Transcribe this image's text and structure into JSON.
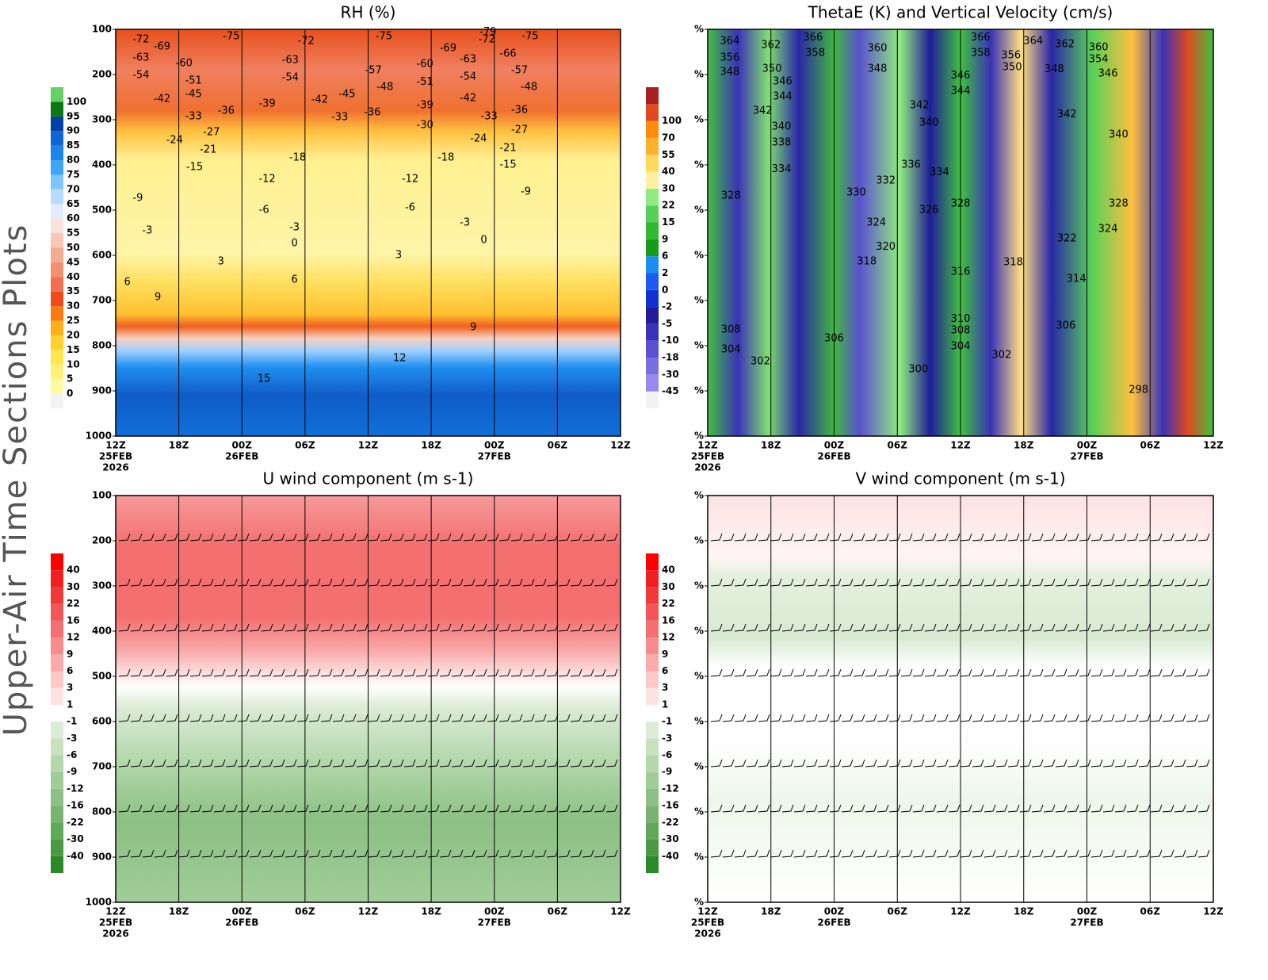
{
  "side_title": "Upper-Air Time Sections Plots",
  "chart_data": [
    {
      "type": "contour",
      "title": "RH (%)",
      "xlim": [
        0,
        48
      ],
      "ylim": [
        1000,
        100
      ],
      "xticks": [
        {
          "value": 0,
          "label": "12Z",
          "date": "25FEB",
          "year": "2026"
        },
        {
          "value": 6,
          "label": "18Z"
        },
        {
          "value": 12,
          "label": "00Z",
          "date": "26FEB"
        },
        {
          "value": 18,
          "label": "06Z"
        },
        {
          "value": 24,
          "label": "12Z"
        },
        {
          "value": 30,
          "label": "18Z"
        },
        {
          "value": 36,
          "label": "00Z",
          "date": "27FEB"
        },
        {
          "value": 42,
          "label": "06Z"
        },
        {
          "value": 48,
          "label": "12Z"
        }
      ],
      "yticks": [
        100,
        200,
        300,
        400,
        500,
        600,
        700,
        800,
        900,
        1000
      ],
      "barbs": false,
      "colorbar": {
        "levels": [
          0,
          5,
          10,
          15,
          20,
          25,
          30,
          35,
          40,
          45,
          50,
          55,
          60,
          65,
          70,
          75,
          80,
          85,
          90,
          95,
          100
        ],
        "colors": [
          "#f2f2f2",
          "#fffaa0",
          "#fff07a",
          "#ffe64a",
          "#ffd22a",
          "#ffb018",
          "#ff7a10",
          "#f04a1a",
          "#f07050",
          "#f29070",
          "#f4ac90",
          "#f7c8b4",
          "#fae2dc",
          "#e0ecff",
          "#b8dcff",
          "#80c4ff",
          "#40a4f8",
          "#1a84ee",
          "#0f64d8",
          "#0040a8",
          "#0a7a14",
          "#66d066"
        ]
      },
      "contour_labels": [
        {
          "x": 2.4,
          "p": 123,
          "value": -72
        },
        {
          "x": 2.4,
          "p": 163,
          "value": -63
        },
        {
          "x": 2.4,
          "p": 202,
          "value": -54
        },
        {
          "x": 4.4,
          "p": 139,
          "value": -69
        },
        {
          "x": 6.5,
          "p": 175,
          "value": -60
        },
        {
          "x": 7.4,
          "p": 214,
          "value": -51
        },
        {
          "x": 7.4,
          "p": 244,
          "value": -45
        },
        {
          "x": 4.4,
          "p": 254,
          "value": -42
        },
        {
          "x": 7.4,
          "p": 293,
          "value": -33
        },
        {
          "x": 10.5,
          "p": 281,
          "value": -36
        },
        {
          "x": 11,
          "p": 116,
          "value": -75
        },
        {
          "x": 14.4,
          "p": 265,
          "value": -39
        },
        {
          "x": 18.1,
          "p": 126,
          "value": -72
        },
        {
          "x": 16.6,
          "p": 168,
          "value": -63
        },
        {
          "x": 16.6,
          "p": 207,
          "value": -54
        },
        {
          "x": 19.4,
          "p": 256,
          "value": -42
        },
        {
          "x": 22,
          "p": 244,
          "value": -45
        },
        {
          "x": 21.3,
          "p": 295,
          "value": -33
        },
        {
          "x": 24.5,
          "p": 191,
          "value": -57
        },
        {
          "x": 25.6,
          "p": 228,
          "value": -48
        },
        {
          "x": 24.4,
          "p": 284,
          "value": -36
        },
        {
          "x": 25.5,
          "p": 116,
          "value": -75
        },
        {
          "x": 9.1,
          "p": 328,
          "value": -27
        },
        {
          "x": 8.8,
          "p": 367,
          "value": -21
        },
        {
          "x": 5.6,
          "p": 346,
          "value": -24
        },
        {
          "x": 7.5,
          "p": 405,
          "value": -15
        },
        {
          "x": 17.3,
          "p": 384,
          "value": -18
        },
        {
          "x": 14.4,
          "p": 432,
          "value": -12
        },
        {
          "x": 2.1,
          "p": 474,
          "value": -9
        },
        {
          "x": 14.1,
          "p": 500,
          "value": -6
        },
        {
          "x": 3,
          "p": 546,
          "value": -3
        },
        {
          "x": 17,
          "p": 539,
          "value": -3
        },
        {
          "x": 17,
          "p": 574,
          "value": 0
        },
        {
          "x": 10,
          "p": 614,
          "value": 3
        },
        {
          "x": 1.1,
          "p": 660,
          "value": 6
        },
        {
          "x": 4,
          "p": 693,
          "value": 9
        },
        {
          "x": 17,
          "p": 654,
          "value": 6
        },
        {
          "x": 14.1,
          "p": 874,
          "value": 15
        },
        {
          "x": 27,
          "p": 828,
          "value": 12
        },
        {
          "x": 34,
          "p": 760,
          "value": 9
        },
        {
          "x": 29.4,
          "p": 177,
          "value": -60
        },
        {
          "x": 29.4,
          "p": 217,
          "value": -51
        },
        {
          "x": 29.4,
          "p": 268,
          "value": -39
        },
        {
          "x": 29.4,
          "p": 312,
          "value": -30
        },
        {
          "x": 31.6,
          "p": 142,
          "value": -69
        },
        {
          "x": 33.5,
          "p": 167,
          "value": -63
        },
        {
          "x": 33.5,
          "p": 205,
          "value": -54
        },
        {
          "x": 33.5,
          "p": 253,
          "value": -42
        },
        {
          "x": 35.5,
          "p": 293,
          "value": -33
        },
        {
          "x": 34.5,
          "p": 342,
          "value": -24
        },
        {
          "x": 31.4,
          "p": 384,
          "value": -18
        },
        {
          "x": 28,
          "p": 432,
          "value": -12
        },
        {
          "x": 28,
          "p": 495,
          "value": -6
        },
        {
          "x": 33.2,
          "p": 528,
          "value": -3
        },
        {
          "x": 35,
          "p": 567,
          "value": 0
        },
        {
          "x": 26.9,
          "p": 600,
          "value": 3
        },
        {
          "x": 35.3,
          "p": 123,
          "value": -72
        },
        {
          "x": 37.3,
          "p": 154,
          "value": -66
        },
        {
          "x": 38.4,
          "p": 191,
          "value": -57
        },
        {
          "x": 39.3,
          "p": 228,
          "value": -48
        },
        {
          "x": 38.4,
          "p": 279,
          "value": -36
        },
        {
          "x": 38.4,
          "p": 323,
          "value": -27
        },
        {
          "x": 37.3,
          "p": 363,
          "value": -21
        },
        {
          "x": 37.3,
          "p": 400,
          "value": -15
        },
        {
          "x": 39,
          "p": 460,
          "value": -9
        },
        {
          "x": 39.4,
          "p": 116,
          "value": -75
        },
        {
          "x": 35.4,
          "p": 106,
          "value": -79
        }
      ]
    },
    {
      "type": "contour",
      "title": "ThetaE (K) and Vertical Velocity (cm/s)",
      "xlim": [
        0,
        48
      ],
      "ylim": [
        1000,
        100
      ],
      "xticks": [
        {
          "value": 0,
          "label": "12Z",
          "date": "25FEB",
          "year": "2026"
        },
        {
          "value": 6,
          "label": "18Z"
        },
        {
          "value": 12,
          "label": "00Z",
          "date": "26FEB"
        },
        {
          "value": 18,
          "label": "06Z"
        },
        {
          "value": 24,
          "label": "12Z"
        },
        {
          "value": 30,
          "label": "18Z"
        },
        {
          "value": 36,
          "label": "00Z",
          "date": "27FEB"
        },
        {
          "value": 42,
          "label": "06Z"
        },
        {
          "value": 48,
          "label": "12Z"
        }
      ],
      "yticks": [
        {
          "value": 100,
          "label": "%"
        },
        {
          "value": 200,
          "label": "%"
        },
        {
          "value": 300,
          "label": "%"
        },
        {
          "value": 400,
          "label": "%"
        },
        {
          "value": 500,
          "label": "%"
        },
        {
          "value": 600,
          "label": "%"
        },
        {
          "value": 700,
          "label": "%"
        },
        {
          "value": 800,
          "label": "%"
        },
        {
          "value": 900,
          "label": "%"
        },
        {
          "value": 1000,
          "label": "%"
        }
      ],
      "barbs": false,
      "colorbar": {
        "levels": [
          -45,
          -30,
          -18,
          -10,
          -5,
          -2,
          0,
          2,
          6,
          9,
          15,
          22,
          30,
          40,
          55,
          70,
          100
        ],
        "colors": [
          "#f2f2f2",
          "#9a8af0",
          "#7a6ee0",
          "#5a50d0",
          "#3a32b8",
          "#201c98",
          "#1030d0",
          "#1e5af0",
          "#1b8ef0",
          "#1a9a1a",
          "#30b830",
          "#58d058",
          "#90ec80",
          "#fff0a0",
          "#ffd860",
          "#ffb030",
          "#ff8c10",
          "#e04a20",
          "#a82020"
        ]
      },
      "contour_labels": [
        {
          "x": 2.1,
          "p": 126,
          "value": 364
        },
        {
          "x": 6,
          "p": 135,
          "value": 362
        },
        {
          "x": 10,
          "p": 118,
          "value": 366
        },
        {
          "x": 10.2,
          "p": 153,
          "value": 358
        },
        {
          "x": 16.1,
          "p": 142,
          "value": 360
        },
        {
          "x": 2.1,
          "p": 163,
          "value": 356
        },
        {
          "x": 6.1,
          "p": 188,
          "value": 350
        },
        {
          "x": 2.1,
          "p": 195,
          "value": 348
        },
        {
          "x": 7.1,
          "p": 216,
          "value": 346
        },
        {
          "x": 16.1,
          "p": 188,
          "value": 348
        },
        {
          "x": 7.1,
          "p": 249,
          "value": 344
        },
        {
          "x": 5.2,
          "p": 281,
          "value": 342
        },
        {
          "x": 7,
          "p": 316,
          "value": 340
        },
        {
          "x": 7,
          "p": 351,
          "value": 338
        },
        {
          "x": 7,
          "p": 410,
          "value": 334
        },
        {
          "x": 2.2,
          "p": 468,
          "value": 328
        },
        {
          "x": 14.1,
          "p": 461,
          "value": 330
        },
        {
          "x": 16.9,
          "p": 435,
          "value": 332
        },
        {
          "x": 19.3,
          "p": 400,
          "value": 336
        },
        {
          "x": 22,
          "p": 417,
          "value": 334
        },
        {
          "x": 20.1,
          "p": 268,
          "value": 342
        },
        {
          "x": 21,
          "p": 307,
          "value": 340
        },
        {
          "x": 24,
          "p": 203,
          "value": 346
        },
        {
          "x": 24,
          "p": 237,
          "value": 344
        },
        {
          "x": 25.9,
          "p": 118,
          "value": 366
        },
        {
          "x": 25.9,
          "p": 153,
          "value": 358
        },
        {
          "x": 28.8,
          "p": 158,
          "value": 356
        },
        {
          "x": 28.9,
          "p": 184,
          "value": 350
        },
        {
          "x": 30.9,
          "p": 126,
          "value": 364
        },
        {
          "x": 33.9,
          "p": 133,
          "value": 362
        },
        {
          "x": 32.9,
          "p": 189,
          "value": 348
        },
        {
          "x": 37.1,
          "p": 140,
          "value": 360
        },
        {
          "x": 37.1,
          "p": 167,
          "value": 354
        },
        {
          "x": 38,
          "p": 198,
          "value": 346
        },
        {
          "x": 34.1,
          "p": 289,
          "value": 342
        },
        {
          "x": 39,
          "p": 333,
          "value": 340
        },
        {
          "x": 21,
          "p": 500,
          "value": 326
        },
        {
          "x": 24,
          "p": 486,
          "value": 328
        },
        {
          "x": 16,
          "p": 528,
          "value": 324
        },
        {
          "x": 16.9,
          "p": 582,
          "value": 320
        },
        {
          "x": 15.1,
          "p": 614,
          "value": 318
        },
        {
          "x": 24,
          "p": 637,
          "value": 316
        },
        {
          "x": 29,
          "p": 616,
          "value": 318
        },
        {
          "x": 39,
          "p": 486,
          "value": 328
        },
        {
          "x": 34.1,
          "p": 563,
          "value": 322
        },
        {
          "x": 38,
          "p": 542,
          "value": 324
        },
        {
          "x": 35,
          "p": 653,
          "value": 314
        },
        {
          "x": 24,
          "p": 741,
          "value": 310
        },
        {
          "x": 24,
          "p": 767,
          "value": 308
        },
        {
          "x": 34,
          "p": 756,
          "value": 306
        },
        {
          "x": 24,
          "p": 802,
          "value": 304
        },
        {
          "x": 27.9,
          "p": 821,
          "value": 302
        },
        {
          "x": 20,
          "p": 853,
          "value": 300
        },
        {
          "x": 12,
          "p": 784,
          "value": 306
        },
        {
          "x": 2.2,
          "p": 765,
          "value": 308
        },
        {
          "x": 2.2,
          "p": 809,
          "value": 304
        },
        {
          "x": 5,
          "p": 835,
          "value": 302
        },
        {
          "x": 40.9,
          "p": 898,
          "value": 298
        }
      ]
    },
    {
      "type": "contour",
      "title": "U wind component (m s-1)",
      "xlim": [
        0,
        48
      ],
      "ylim": [
        1000,
        100
      ],
      "xticks": [
        {
          "value": 0,
          "label": "12Z",
          "date": "25FEB",
          "year": "2026"
        },
        {
          "value": 6,
          "label": "18Z"
        },
        {
          "value": 12,
          "label": "00Z",
          "date": "26FEB"
        },
        {
          "value": 18,
          "label": "06Z"
        },
        {
          "value": 24,
          "label": "12Z"
        },
        {
          "value": 30,
          "label": "18Z"
        },
        {
          "value": 36,
          "label": "00Z",
          "date": "27FEB"
        },
        {
          "value": 42,
          "label": "06Z"
        },
        {
          "value": 48,
          "label": "12Z"
        }
      ],
      "yticks": [
        100,
        200,
        300,
        400,
        500,
        600,
        700,
        800,
        900,
        1000
      ],
      "barbs": true,
      "colorbar": {
        "levels": [
          -40,
          -30,
          -22,
          -16,
          -12,
          -9,
          -6,
          -3,
          -1,
          1,
          3,
          6,
          9,
          12,
          16,
          22,
          30,
          40
        ],
        "colors": [
          "#2a8a2a",
          "#4a9a44",
          "#62a85a",
          "#78b470",
          "#8cc084",
          "#a0cc98",
          "#b4d8ac",
          "#c8e2c0",
          "#dcecd6",
          "#ffffff",
          "#fde2e2",
          "#fcc8c8",
          "#f9aaaa",
          "#f68c8c",
          "#f47070",
          "#f25656",
          "#f03a3a",
          "#f02020",
          "#ff0000"
        ]
      },
      "contour_labels": []
    },
    {
      "type": "contour",
      "title": "V wind component (m s-1)",
      "xlim": [
        0,
        48
      ],
      "ylim": [
        1000,
        100
      ],
      "xticks": [
        {
          "value": 0,
          "label": "12Z",
          "date": "25FEB",
          "year": "2026"
        },
        {
          "value": 6,
          "label": "18Z"
        },
        {
          "value": 12,
          "label": "00Z",
          "date": "26FEB"
        },
        {
          "value": 18,
          "label": "06Z"
        },
        {
          "value": 24,
          "label": "12Z"
        },
        {
          "value": 30,
          "label": "18Z"
        },
        {
          "value": 36,
          "label": "00Z",
          "date": "27FEB"
        },
        {
          "value": 42,
          "label": "06Z"
        },
        {
          "value": 48,
          "label": "12Z"
        }
      ],
      "yticks": [
        {
          "value": 100,
          "label": "%"
        },
        {
          "value": 200,
          "label": "%"
        },
        {
          "value": 300,
          "label": "%"
        },
        {
          "value": 400,
          "label": "%"
        },
        {
          "value": 500,
          "label": "%"
        },
        {
          "value": 600,
          "label": "%"
        },
        {
          "value": 700,
          "label": "%"
        },
        {
          "value": 800,
          "label": "%"
        },
        {
          "value": 900,
          "label": "%"
        },
        {
          "value": 1000,
          "label": "%"
        }
      ],
      "barbs": true,
      "colorbar": {
        "levels": [
          -40,
          -30,
          -22,
          -16,
          -12,
          -9,
          -6,
          -3,
          -1,
          1,
          3,
          6,
          9,
          12,
          16,
          22,
          30,
          40
        ],
        "colors": [
          "#2a8a2a",
          "#4a9a44",
          "#62a85a",
          "#78b470",
          "#8cc084",
          "#a0cc98",
          "#b4d8ac",
          "#c8e2c0",
          "#dcecd6",
          "#ffffff",
          "#fde2e2",
          "#fcc8c8",
          "#f9aaaa",
          "#f68c8c",
          "#f47070",
          "#f25656",
          "#f03a3a",
          "#f02020",
          "#ff0000"
        ]
      },
      "contour_labels": []
    }
  ]
}
